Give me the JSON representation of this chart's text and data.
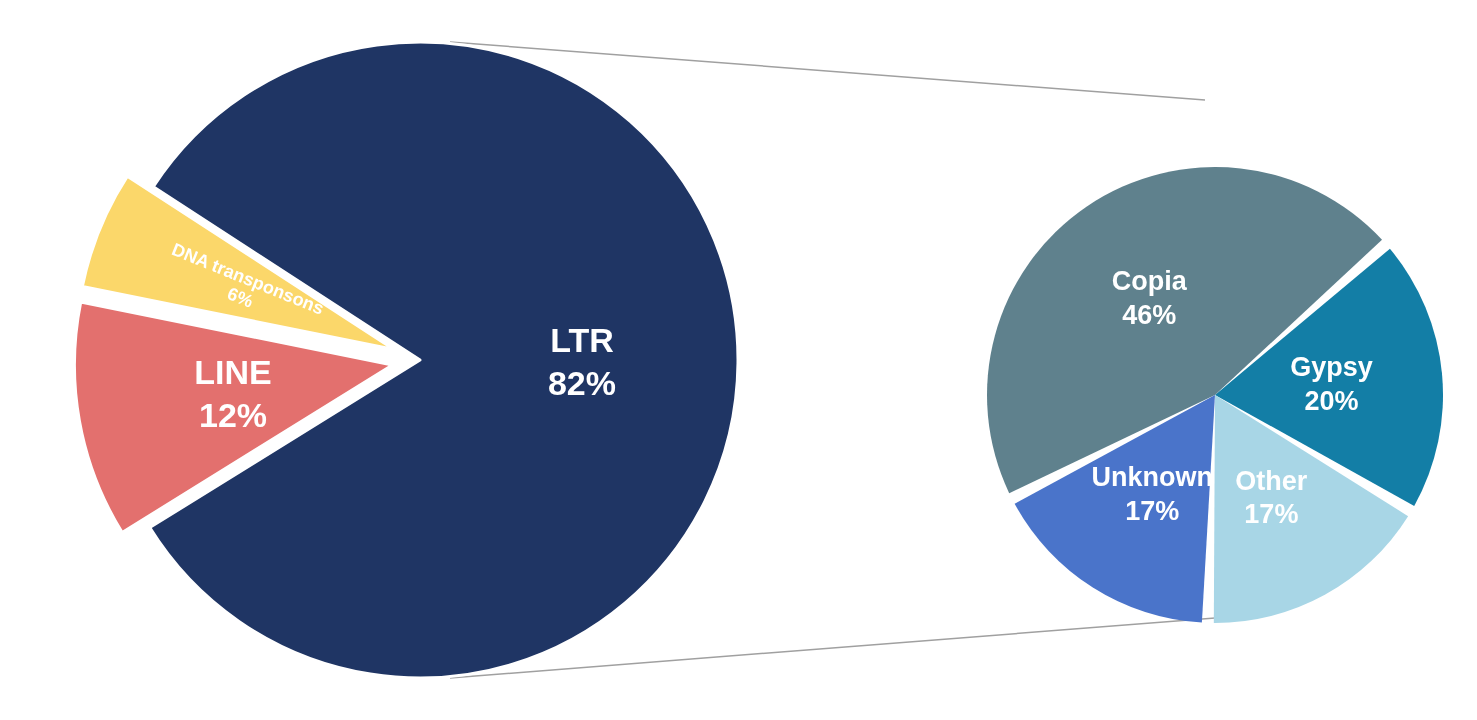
{
  "chart_data": [
    {
      "type": "pie",
      "categories": [
        "LTR",
        "LINE",
        "DNA transponsons"
      ],
      "values": [
        82,
        12,
        6
      ],
      "value_labels": [
        "82%",
        "12%",
        "6%"
      ],
      "colors": [
        "#1f3564",
        "#e3706e",
        "#fbd76a"
      ]
    },
    {
      "type": "pie",
      "categories": [
        "Copia",
        "Gypsy",
        "Other",
        "Unknown"
      ],
      "values": [
        46,
        20,
        17,
        17
      ],
      "value_labels": [
        "46%",
        "20%",
        "17%",
        "17%"
      ],
      "colors": [
        "#5f818d",
        "#137ea6",
        "#a8d6e6",
        "#4a74ca"
      ]
    }
  ]
}
